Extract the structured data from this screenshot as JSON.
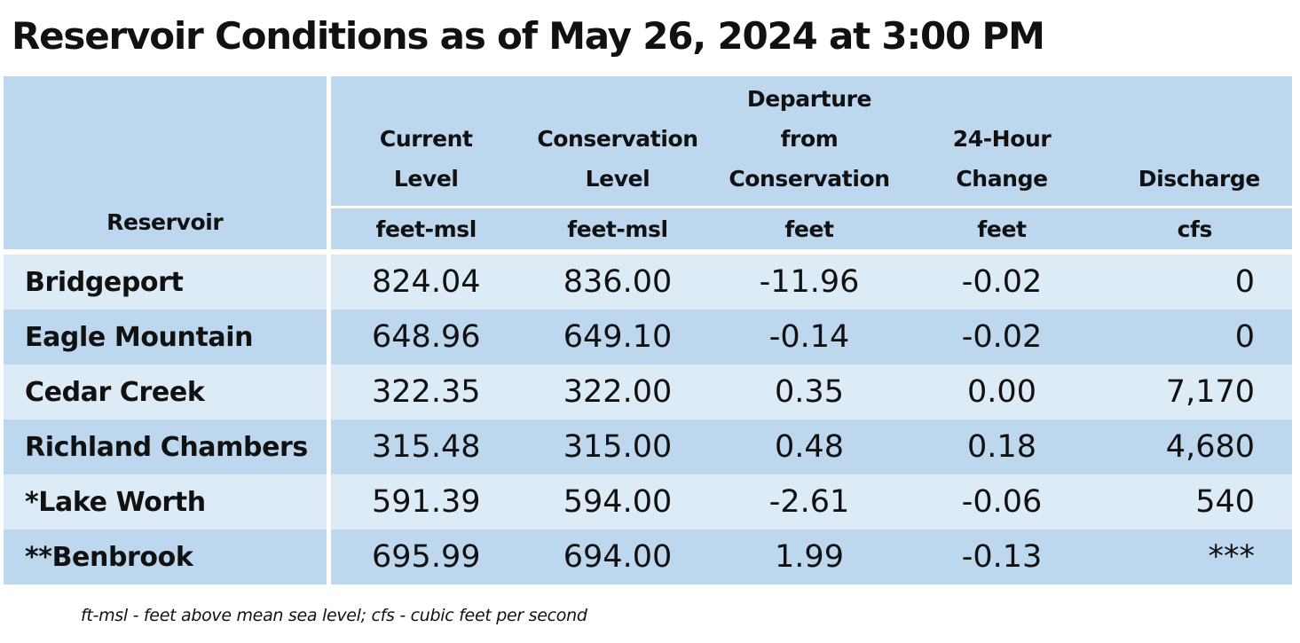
{
  "title": "Reservoir Conditions as of May 26, 2024 at 3:00 PM",
  "table": {
    "headers": {
      "reservoir": "Reservoir",
      "current_level": [
        "Current",
        "Level"
      ],
      "conservation_level": [
        "Conservation",
        "Level"
      ],
      "departure": [
        "Departure",
        "from",
        "Conservation"
      ],
      "change_24h": [
        "24-Hour",
        "Change"
      ],
      "discharge": "Discharge"
    },
    "units": {
      "current_level": "feet-msl",
      "conservation_level": "feet-msl",
      "departure": "feet",
      "change_24h": "feet",
      "discharge": "cfs"
    },
    "rows": [
      {
        "name": "Bridgeport",
        "current": "824.04",
        "conservation": "836.00",
        "departure": "-11.96",
        "change": "-0.02",
        "discharge": "0"
      },
      {
        "name": "Eagle Mountain",
        "current": "648.96",
        "conservation": "649.10",
        "departure": "-0.14",
        "change": "-0.02",
        "discharge": "0"
      },
      {
        "name": "Cedar Creek",
        "current": "322.35",
        "conservation": "322.00",
        "departure": "0.35",
        "change": "0.00",
        "discharge": "7,170"
      },
      {
        "name": "Richland Chambers",
        "current": "315.48",
        "conservation": "315.00",
        "departure": "0.48",
        "change": "0.18",
        "discharge": "4,680"
      },
      {
        "name": "*Lake Worth",
        "current": "591.39",
        "conservation": "594.00",
        "departure": "-2.61",
        "change": "-0.06",
        "discharge": "540"
      },
      {
        "name": "**Benbrook",
        "current": "695.99",
        "conservation": "694.00",
        "departure": "1.99",
        "change": "-0.13",
        "discharge": "***"
      }
    ]
  },
  "footnote": "ft-msl - feet above mean sea level; cfs - cubic feet per second",
  "colors": {
    "header_bg": "#bdd7ee",
    "row_light": "#ddebf7",
    "row_dark": "#bdd7ee"
  }
}
